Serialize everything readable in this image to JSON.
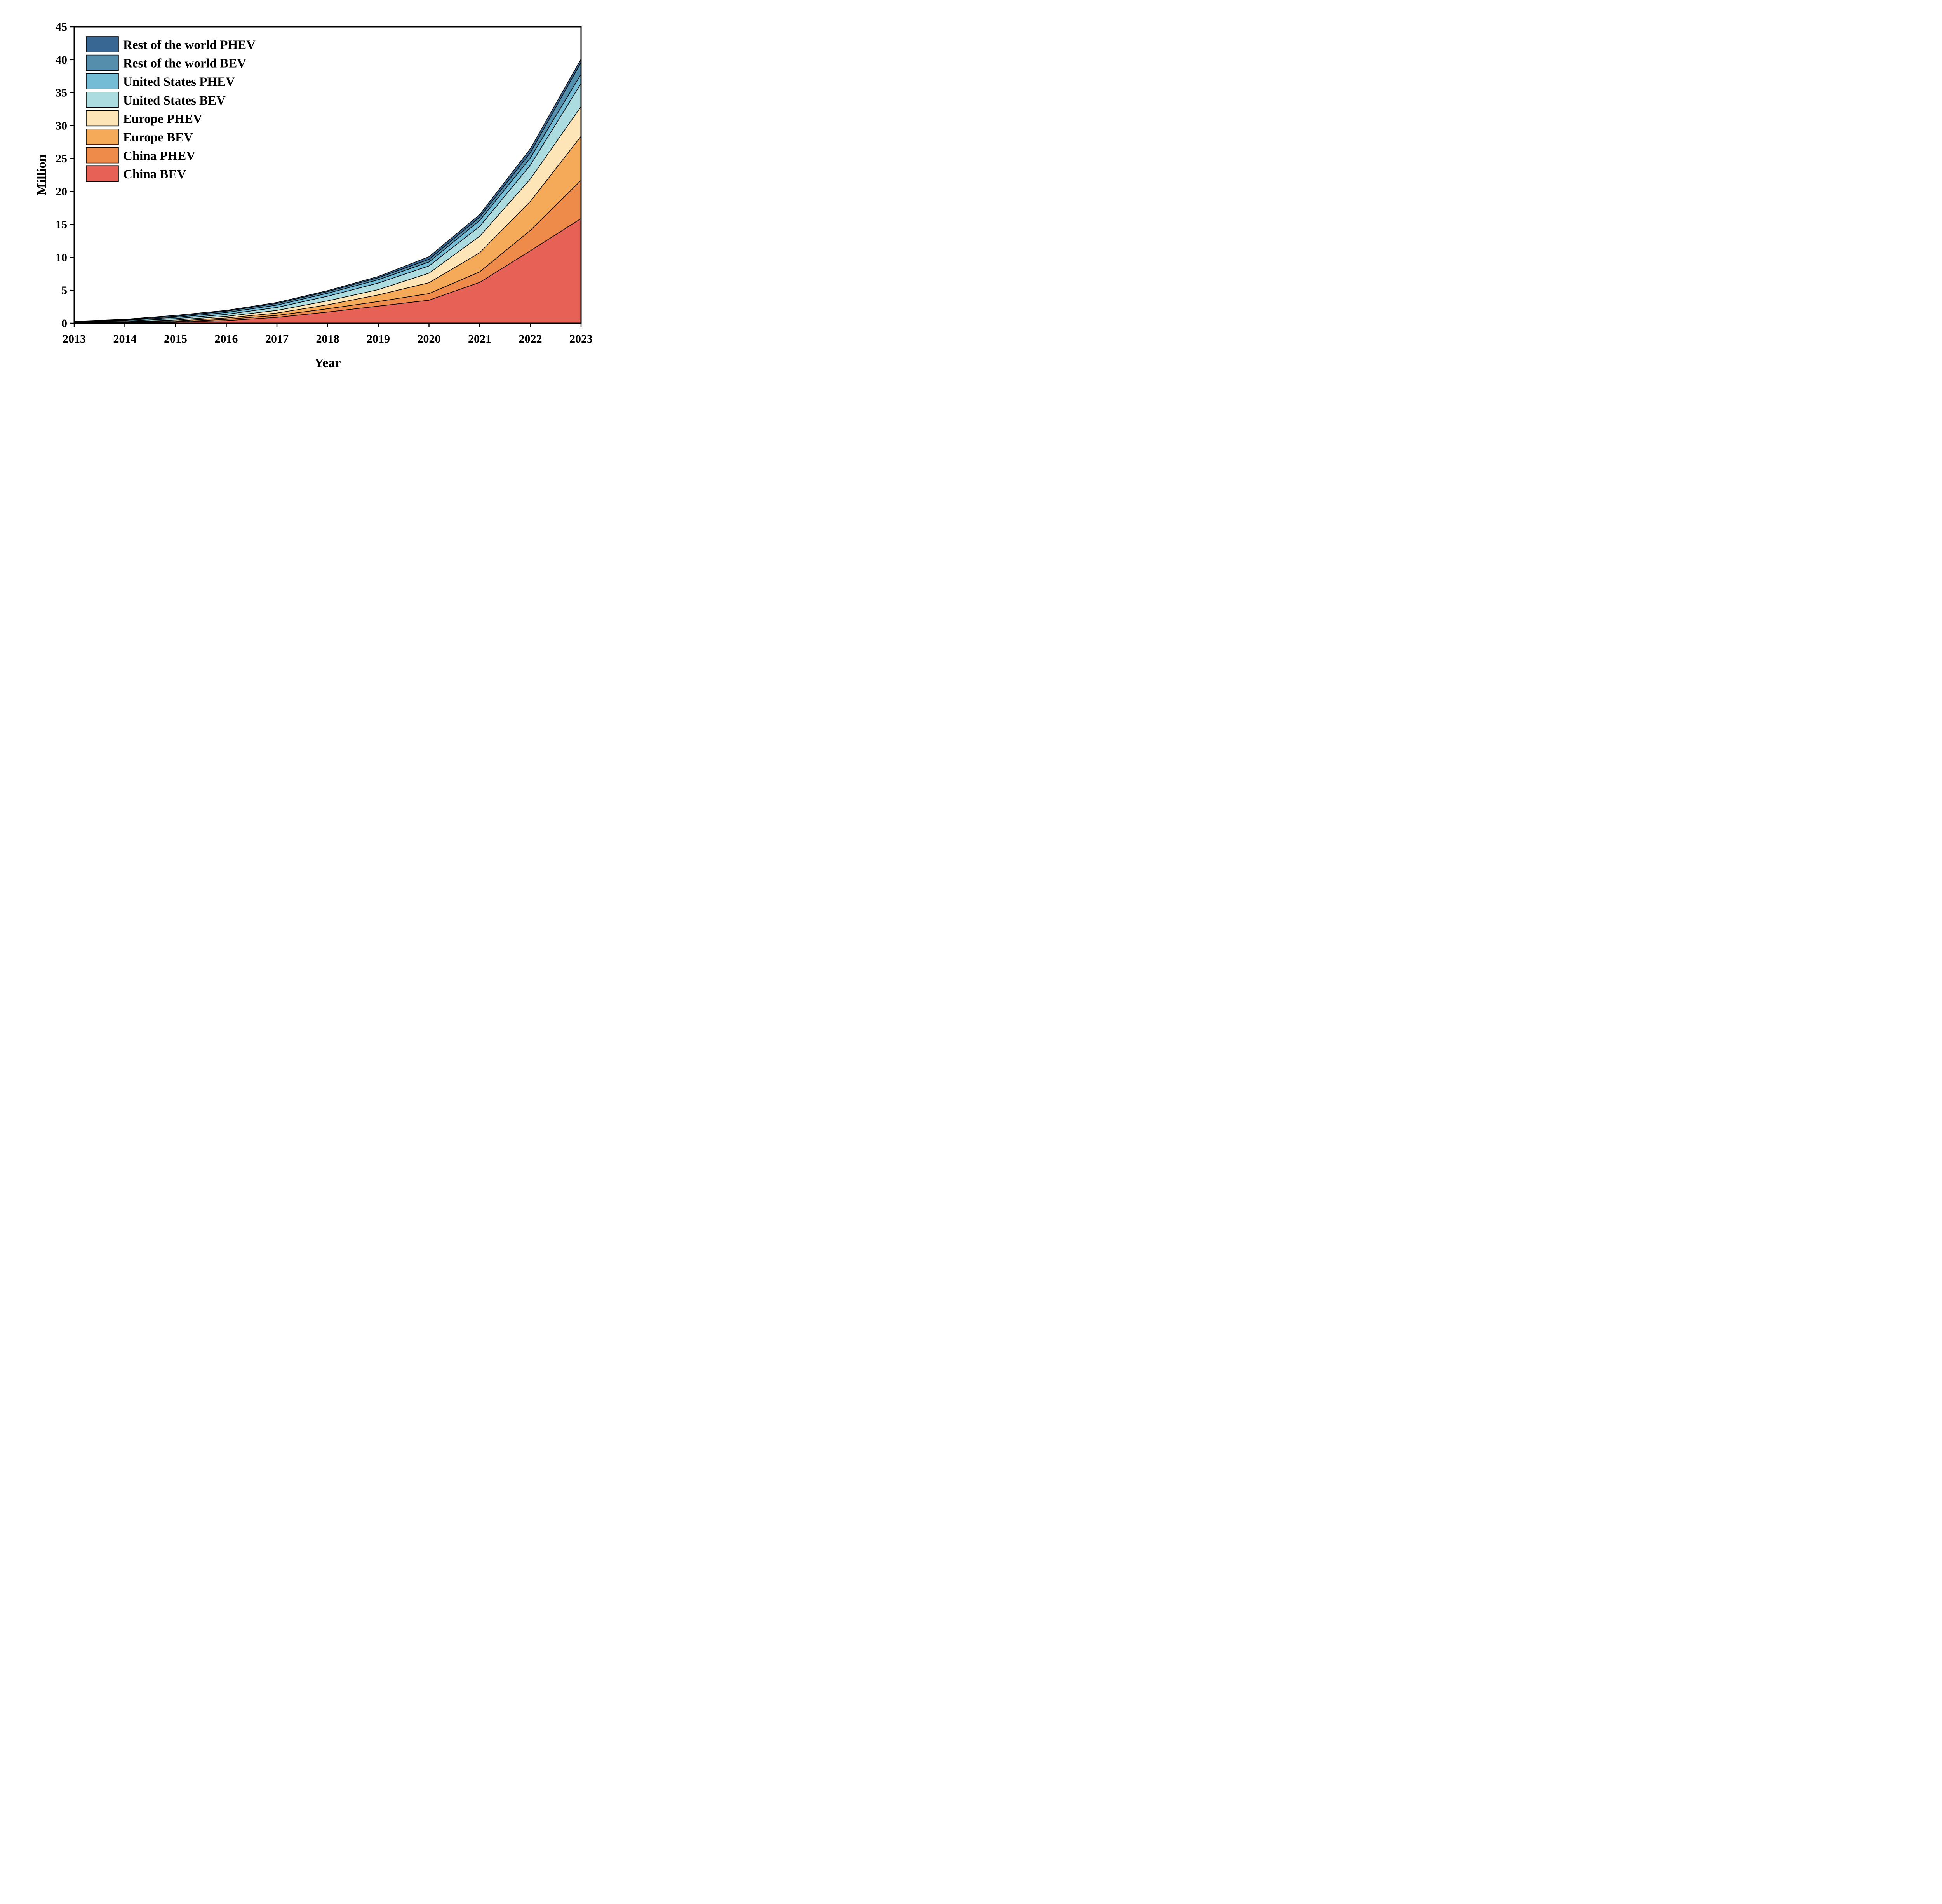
{
  "chart_data": {
    "type": "area",
    "stacked": true,
    "title": "",
    "xlabel": "Year",
    "ylabel": "Million",
    "x": [
      2013,
      2014,
      2015,
      2016,
      2017,
      2018,
      2019,
      2020,
      2021,
      2022,
      2023
    ],
    "x_tick_labels": [
      "2013",
      "2014",
      "2015",
      "2016",
      "2017",
      "2018",
      "2019",
      "2020",
      "2021",
      "2022",
      "2023"
    ],
    "ylim": [
      0,
      45
    ],
    "y_ticks": [
      0,
      5,
      10,
      15,
      20,
      25,
      30,
      35,
      40,
      45
    ],
    "y_tick_labels": [
      "0",
      "5",
      "10",
      "15",
      "20",
      "25",
      "30",
      "35",
      "40",
      "45"
    ],
    "grid": false,
    "legend_position": "top-left",
    "series": [
      {
        "name": "China BEV",
        "color": "#E66156",
        "values": [
          0.02,
          0.05,
          0.15,
          0.4,
          0.9,
          1.7,
          2.6,
          3.5,
          6.2,
          11.0,
          15.9
        ]
      },
      {
        "name": "China PHEV",
        "color": "#EF8B4A",
        "values": [
          0.01,
          0.03,
          0.08,
          0.2,
          0.3,
          0.5,
          0.7,
          1.0,
          1.6,
          3.1,
          5.8
        ]
      },
      {
        "name": "Europe BEV",
        "color": "#F5AA5A",
        "values": [
          0.04,
          0.07,
          0.13,
          0.2,
          0.35,
          0.6,
          1.0,
          1.65,
          2.9,
          4.4,
          6.7
        ]
      },
      {
        "name": "Europe PHEV",
        "color": "#FDE5B7",
        "values": [
          0.03,
          0.06,
          0.14,
          0.25,
          0.4,
          0.6,
          0.8,
          1.45,
          2.5,
          3.4,
          4.5
        ]
      },
      {
        "name": "United States BEV",
        "color": "#ACDCE0",
        "values": [
          0.06,
          0.12,
          0.2,
          0.3,
          0.45,
          0.7,
          1.0,
          1.1,
          1.5,
          2.1,
          3.5
        ]
      },
      {
        "name": "United States PHEV",
        "color": "#74BBD6",
        "values": [
          0.06,
          0.12,
          0.2,
          0.28,
          0.35,
          0.45,
          0.5,
          0.6,
          0.9,
          1.1,
          1.4
        ]
      },
      {
        "name": "Rest of the world BEV",
        "color": "#538FAD",
        "values": [
          0.04,
          0.08,
          0.15,
          0.2,
          0.25,
          0.25,
          0.3,
          0.4,
          0.5,
          0.8,
          1.8
        ]
      },
      {
        "name": "Rest of the world PHEV",
        "color": "#396794",
        "values": [
          0.04,
          0.07,
          0.15,
          0.12,
          0.15,
          0.15,
          0.2,
          0.4,
          0.4,
          0.6,
          0.5
        ]
      }
    ],
    "legend": [
      "Rest of the world PHEV",
      "Rest of the world BEV",
      "United States PHEV",
      "United States BEV",
      "Europe PHEV",
      "Europe BEV",
      "China PHEV",
      "China BEV"
    ]
  }
}
